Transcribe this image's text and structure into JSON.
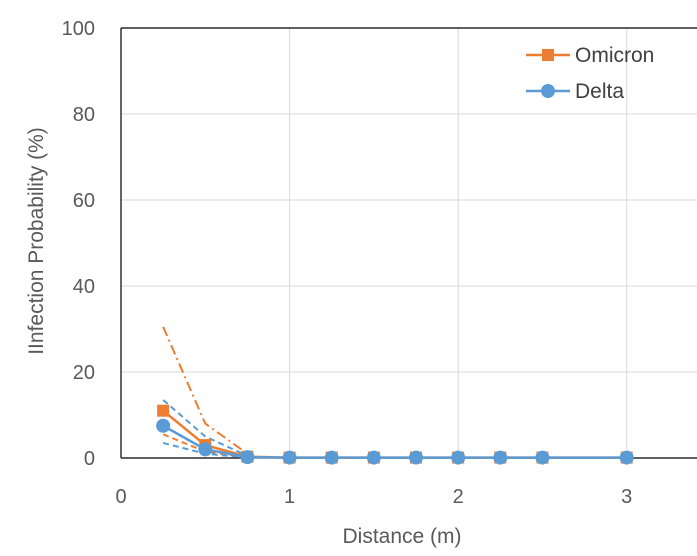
{
  "chart_data": {
    "type": "line",
    "title": "",
    "xlabel": "Distance (m)",
    "ylabel": "IInfection Probability (%)",
    "xlim": [
      0,
      3.5
    ],
    "ylim": [
      0,
      100
    ],
    "x_ticks": [
      0,
      1,
      2,
      3
    ],
    "y_ticks": [
      0,
      20,
      40,
      60,
      80,
      100
    ],
    "grid": true,
    "legend_position": "top-right",
    "x": [
      0.25,
      0.5,
      0.75,
      1.0,
      1.25,
      1.5,
      1.75,
      2.0,
      2.25,
      2.5,
      3.0
    ],
    "series": [
      {
        "name": "Omicron",
        "color": "#ED7D31",
        "marker": "square",
        "values": [
          11,
          3,
          0.3,
          0.1,
          0.1,
          0.1,
          0.1,
          0.1,
          0.1,
          0.1,
          0.1
        ]
      },
      {
        "name": "Delta",
        "color": "#5B9BD5",
        "marker": "circle",
        "values": [
          7.5,
          2,
          0.2,
          0.1,
          0.1,
          0.1,
          0.1,
          0.1,
          0.1,
          0.1,
          0.1
        ]
      }
    ],
    "bands": [
      {
        "color": "#ED7D31",
        "dash": "dashdot",
        "x": [
          0.25,
          0.5,
          0.75
        ],
        "values": [
          30.5,
          8,
          1
        ]
      },
      {
        "color": "#ED7D31",
        "dash": "dash",
        "x": [
          0.25,
          0.5,
          0.75
        ],
        "values": [
          5.5,
          1.5,
          0.2
        ]
      },
      {
        "color": "#5B9BD5",
        "dash": "dash",
        "x": [
          0.25,
          0.5,
          0.75
        ],
        "values": [
          13.5,
          5,
          0.5
        ]
      },
      {
        "color": "#5B9BD5",
        "dash": "dash",
        "x": [
          0.25,
          0.5,
          0.75
        ],
        "values": [
          3.5,
          1,
          0.1
        ]
      }
    ]
  }
}
